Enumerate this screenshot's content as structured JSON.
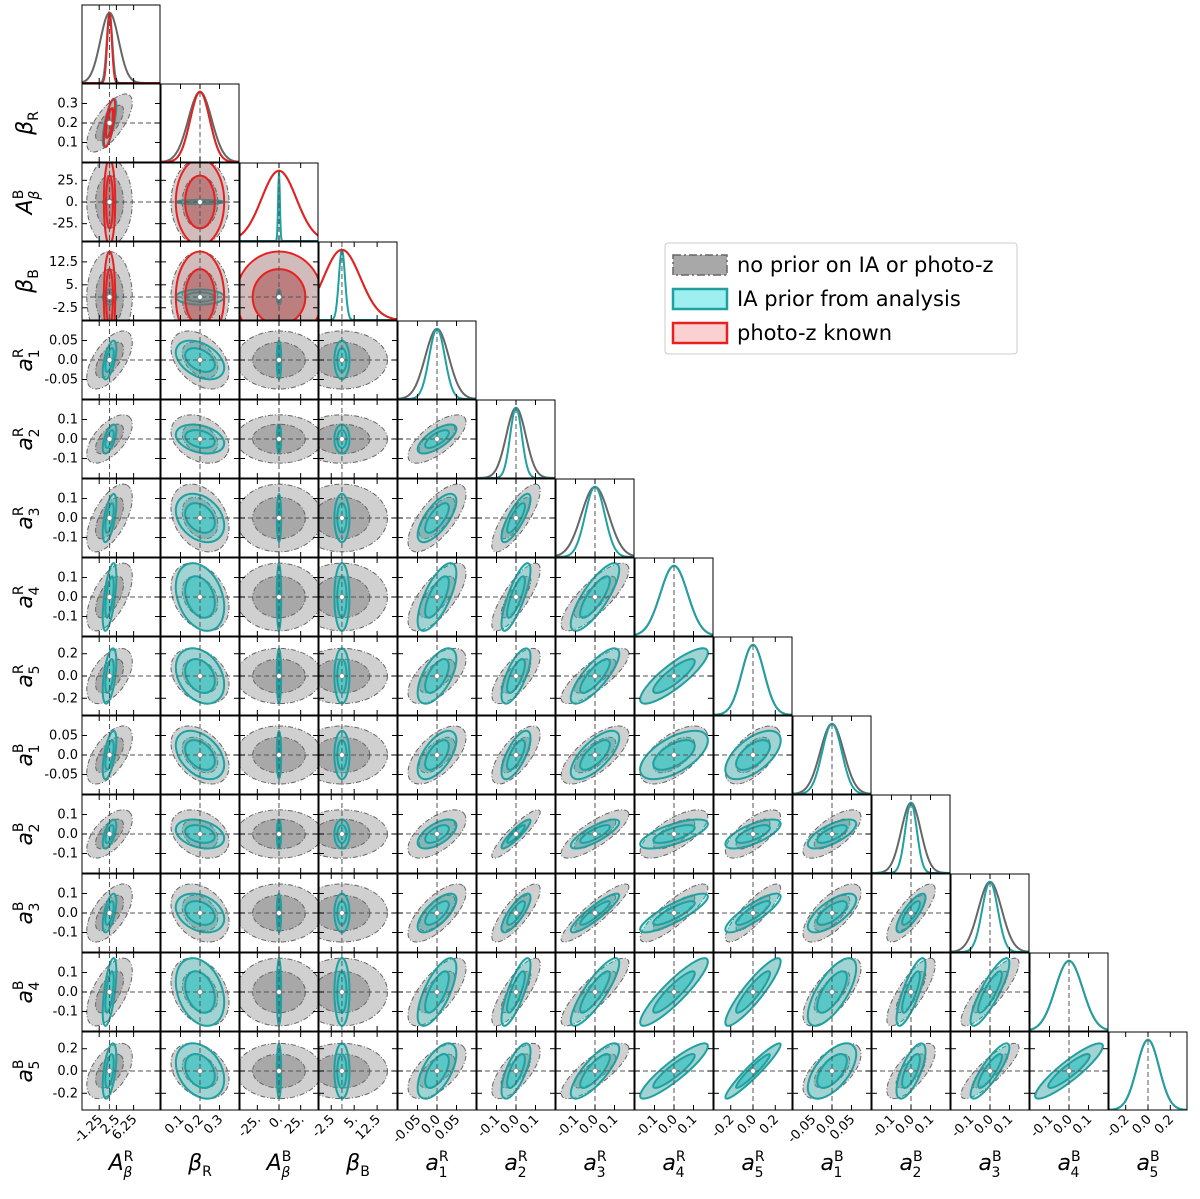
{
  "chart_data": {
    "type": "corner",
    "legend": "upper right",
    "parameters": [
      {
        "symbol": "A",
        "sub": "β",
        "sup": "R",
        "lim": [
          -5,
          12
        ],
        "fiducial": 1,
        "ticks": [
          -1.25,
          2.5,
          6.25
        ]
      },
      {
        "symbol": "β",
        "sub": "R",
        "lim": [
          0.0,
          0.4
        ],
        "fiducial": 0.2,
        "ticks": [
          0.1,
          0.2,
          0.3
        ]
      },
      {
        "symbol": "A",
        "sub": "β",
        "sup": "B",
        "lim": [
          -45,
          45
        ],
        "fiducial": 0,
        "ticks": [
          {
            "value": -25,
            "label": "-25."
          },
          {
            "value": 0,
            "label": "0."
          },
          {
            "value": 25,
            "label": "25."
          }
        ]
      },
      {
        "symbol": "β",
        "sub": "B",
        "lim": [
          -6.5,
          19
        ],
        "fiducial": 1,
        "ticks": [
          -2.5,
          {
            "value": 5,
            "label": "5."
          },
          12.5
        ]
      },
      {
        "symbol": "a",
        "sub": "1",
        "sup": "R",
        "lim": [
          -0.1,
          0.1
        ],
        "fiducial": 0,
        "ticks": [
          -0.05,
          {
            "value": 0,
            "label": "0.0"
          },
          0.05
        ]
      },
      {
        "symbol": "a",
        "sub": "2",
        "sup": "R",
        "lim": [
          -0.2,
          0.2
        ],
        "fiducial": 0,
        "ticks": [
          -0.1,
          {
            "value": 0,
            "label": "0.0"
          },
          0.1
        ]
      },
      {
        "symbol": "a",
        "sub": "3",
        "sup": "R",
        "lim": [
          -0.2,
          0.2
        ],
        "fiducial": 0,
        "ticks": [
          -0.1,
          {
            "value": 0,
            "label": "0.0"
          },
          0.1
        ]
      },
      {
        "symbol": "a",
        "sub": "4",
        "sup": "R",
        "lim": [
          -0.2,
          0.2
        ],
        "fiducial": 0,
        "ticks": [
          -0.1,
          {
            "value": 0,
            "label": "0.0"
          },
          0.1
        ]
      },
      {
        "symbol": "a",
        "sub": "5",
        "sup": "R",
        "lim": [
          -0.35,
          0.35
        ],
        "fiducial": 0,
        "ticks": [
          -0.2,
          {
            "value": 0,
            "label": "0.0"
          },
          0.2
        ]
      },
      {
        "symbol": "a",
        "sub": "1",
        "sup": "B",
        "lim": [
          -0.1,
          0.1
        ],
        "fiducial": 0,
        "ticks": [
          -0.05,
          {
            "value": 0,
            "label": "0.0"
          },
          0.05
        ]
      },
      {
        "symbol": "a",
        "sub": "2",
        "sup": "B",
        "lim": [
          -0.2,
          0.2
        ],
        "fiducial": 0,
        "ticks": [
          -0.1,
          {
            "value": 0,
            "label": "0.0"
          },
          0.1
        ]
      },
      {
        "symbol": "a",
        "sub": "3",
        "sup": "B",
        "lim": [
          -0.2,
          0.2
        ],
        "fiducial": 0,
        "ticks": [
          -0.1,
          {
            "value": 0,
            "label": "0.0"
          },
          0.1
        ]
      },
      {
        "symbol": "a",
        "sub": "4",
        "sup": "B",
        "lim": [
          -0.2,
          0.2
        ],
        "fiducial": 0,
        "ticks": [
          -0.1,
          {
            "value": 0,
            "label": "0.0"
          },
          0.1
        ]
      },
      {
        "symbol": "a",
        "sub": "5",
        "sup": "B",
        "lim": [
          -0.35,
          0.35
        ],
        "fiducial": 0,
        "ticks": [
          -0.2,
          {
            "value": 0,
            "label": "0.0"
          },
          0.2
        ]
      }
    ],
    "series": [
      {
        "name": "no prior on IA or photo-z",
        "color": "#666666",
        "sigma": [
          2,
          0.06,
          20,
          6,
          0.03,
          0.05,
          0.07,
          0.07,
          0.1,
          0.03,
          0.05,
          0.06,
          0.07,
          0.1
        ]
      },
      {
        "name": "IA prior from analysis",
        "color": "#20a0a0",
        "sigma": [
          0.6,
          0.05,
          1,
          1,
          0.02,
          0.03,
          0.05,
          0.07,
          0.1,
          0.025,
          0.03,
          0.04,
          0.07,
          0.1
        ]
      },
      {
        "name": "photo-z known",
        "color": "#e82020",
        "sigma": [
          0.5,
          0.05,
          20,
          6,
          null,
          null,
          null,
          null,
          null,
          null,
          null,
          null,
          null,
          null
        ]
      }
    ],
    "correlation": [
      [],
      [
        0.7
      ],
      [
        0,
        0
      ],
      [
        0,
        0,
        0
      ],
      [
        0.6,
        -0.4,
        0,
        0
      ],
      [
        0.6,
        -0.3,
        0,
        0,
        0.7
      ],
      [
        0.6,
        -0.3,
        0,
        0,
        0.7,
        0.8
      ],
      [
        0.6,
        -0.3,
        0,
        0,
        0.7,
        0.8,
        0.8
      ],
      [
        0.5,
        -0.3,
        0,
        0,
        0.6,
        0.7,
        0.8,
        0.85
      ],
      [
        0.6,
        -0.4,
        0,
        0,
        0.6,
        0.7,
        0.7,
        0.6,
        0.6
      ],
      [
        0.6,
        -0.3,
        0,
        0,
        0.6,
        0.9,
        0.8,
        0.7,
        0.7,
        0.7
      ],
      [
        0.6,
        -0.3,
        0,
        0,
        0.7,
        0.8,
        0.9,
        0.85,
        0.85,
        0.7,
        0.8
      ],
      [
        0.6,
        -0.3,
        0,
        0,
        0.7,
        0.8,
        0.85,
        0.9,
        0.9,
        0.7,
        0.8,
        0.85
      ],
      [
        0.5,
        -0.3,
        0,
        0,
        0.6,
        0.7,
        0.8,
        0.9,
        0.95,
        0.6,
        0.7,
        0.85,
        0.9
      ]
    ]
  }
}
